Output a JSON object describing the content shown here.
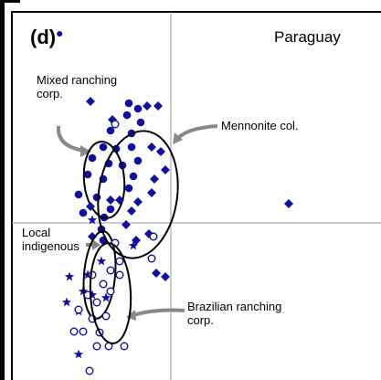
{
  "chart_data": {
    "type": "scatter",
    "title": "(d)",
    "subtitle": "Paraguay",
    "xlim": [
      -174,
      231
    ],
    "ylim": [
      -173,
      231
    ],
    "series": [
      {
        "name": "Mixed ranching corp.",
        "marker": "circle",
        "color": "#1010a0",
        "x": [
          -46,
          -36,
          -48,
          -33,
          -66,
          -43,
          -74,
          -60,
          -43,
          -86,
          -68,
          -53,
          -36,
          -74,
          -91,
          -41,
          -46,
          -101,
          -81,
          -66,
          -73,
          -96,
          -76,
          -74
        ],
        "values": [
          131,
          125,
          118,
          110,
          101,
          98,
          83,
          81,
          83,
          71,
          65,
          63,
          68,
          48,
          53,
          51,
          38,
          31,
          28,
          15,
          6,
          11,
          -7,
          -19
        ],
        "ellipse": {
          "cx": -73,
          "cy": 47,
          "rx": 22,
          "ry": 42,
          "angle": -5
        }
      },
      {
        "name": "Mennonite col.",
        "marker": "diamond",
        "color": "#1010a0",
        "x": [
          -88,
          -26,
          -14,
          -64,
          -21,
          -11,
          -18,
          -6,
          -21,
          -36,
          -43,
          -56,
          -66,
          -88,
          -24,
          -38,
          129,
          -16,
          -6,
          -49,
          -86
        ],
        "values": [
          133,
          128,
          128,
          113,
          83,
          78,
          48,
          58,
          33,
          23,
          13,
          25,
          25,
          18,
          -12,
          -19,
          21,
          -55,
          -59,
          -2,
          -15
        ],
        "ellipse": {
          "cx": -36,
          "cy": 31,
          "rx": 43,
          "ry": 70,
          "angle": 8
        }
      },
      {
        "name": "Local indigenous",
        "marker": "star",
        "color": "#1010a0",
        "x": [
          -86,
          -41,
          -111,
          -91,
          -96,
          -86,
          -114,
          -71,
          -101,
          -101,
          -76
        ],
        "values": [
          3,
          -25,
          -59,
          -57,
          -75,
          -79,
          -87,
          -82,
          -97,
          -144,
          -42
        ],
        "ellipse": {
          "cx": -78,
          "cy": -57,
          "rx": 17,
          "ry": 48,
          "angle": 5
        }
      },
      {
        "name": "Brazilian ranching corp.",
        "marker": "open-circle",
        "color": "#1010a0",
        "x": [
          -61,
          -19,
          -21,
          -56,
          -66,
          -86,
          -56,
          -74,
          -66,
          -91,
          -81,
          -101,
          -86,
          -71,
          -106,
          -96,
          -78,
          -81,
          -68,
          -51,
          -89,
          -61
        ],
        "values": [
          108,
          -15,
          -39,
          -42,
          -52,
          -57,
          -57,
          -67,
          -75,
          -79,
          -87,
          -95,
          -105,
          -102,
          -119,
          -119,
          -120,
          -135,
          -135,
          -135,
          -162,
          -22
        ],
        "ellipse": {
          "cx": -66,
          "cy": -77,
          "rx": 22,
          "ry": 55,
          "angle": -3
        }
      }
    ]
  }
}
